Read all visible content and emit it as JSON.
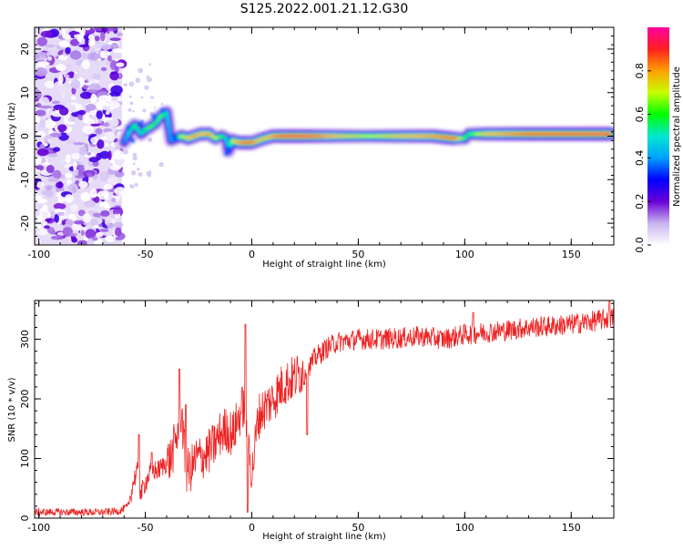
{
  "figure_title": "S125.2022.001.21.12.G30",
  "chart_data": [
    {
      "type": "heatmap",
      "title": "S125.2022.001.21.12.G30",
      "xlabel": "Height of straight line (km)",
      "ylabel": "Frequency (Hz)",
      "xlim": [
        -102,
        170
      ],
      "ylim": [
        -25,
        25
      ],
      "x_ticks": [
        "-100",
        "-50",
        "0",
        "50",
        "100",
        "150"
      ],
      "y_ticks": [
        "-20",
        "-10",
        "0",
        "10",
        "20"
      ],
      "colorbar": {
        "label": "Normalized spectral amplitude",
        "range": [
          0,
          1
        ],
        "ticks": [
          "0.0",
          "0.2",
          "0.4",
          "0.6",
          "0.8"
        ],
        "colors": [
          "#ffffff",
          "#c9b3f0",
          "#6a00d4",
          "#0000ff",
          "#00a0ff",
          "#00e8d0",
          "#00ff00",
          "#c8ff00",
          "#ffa000",
          "#ff2020",
          "#ff00a0"
        ]
      },
      "noise_region": {
        "x": [
          -102,
          -61
        ],
        "y": [
          -25,
          25
        ],
        "peak_amplitude": 0.25
      },
      "ridge": {
        "x": [
          -60,
          -57,
          -55,
          -52,
          -50,
          -48,
          -45,
          -43,
          -41,
          -40,
          -38,
          -36,
          -33,
          -30,
          -27,
          -24,
          -20,
          -17,
          -14,
          -12,
          -11,
          -10,
          -9,
          -6,
          -3,
          0,
          3,
          6,
          10,
          15,
          25,
          40,
          55,
          70,
          85,
          95,
          100,
          102,
          110,
          130,
          150,
          168
        ],
        "frequency": [
          -1.5,
          1.5,
          2.5,
          0.5,
          1.5,
          2,
          3,
          4.5,
          5,
          5.5,
          -1,
          -0.5,
          0,
          -0.5,
          0,
          0.5,
          0.5,
          -0.5,
          0,
          -0.5,
          -3.5,
          -2,
          -1,
          -1.5,
          -1.5,
          -1.5,
          -1,
          -0.5,
          0,
          0,
          0,
          0,
          0,
          0,
          0,
          -0.5,
          -0.5,
          0.5,
          0.5,
          0.5,
          0.5,
          0.5
        ],
        "amplitude": [
          0.4,
          0.55,
          0.6,
          0.5,
          0.6,
          0.65,
          0.6,
          0.65,
          0.6,
          0.5,
          0.4,
          0.55,
          0.7,
          0.8,
          0.85,
          0.8,
          0.85,
          0.7,
          0.6,
          0.5,
          0.4,
          0.6,
          0.75,
          0.85,
          0.9,
          0.9,
          0.8,
          0.8,
          0.85,
          0.95,
          0.95,
          0.8,
          0.7,
          0.8,
          0.85,
          0.9,
          0.6,
          0.6,
          0.8,
          0.9,
          0.92,
          0.95
        ]
      }
    },
    {
      "type": "line",
      "title": "",
      "xlabel": "Height of straight line (km)",
      "ylabel": "SNR (10 * v/v)",
      "xlim": [
        -102,
        170
      ],
      "ylim": [
        0,
        365
      ],
      "x_ticks": [
        "-100",
        "-50",
        "0",
        "50",
        "100",
        "150"
      ],
      "y_ticks": [
        "0",
        "100",
        "200",
        "300"
      ],
      "series_color": "#ee2222",
      "trend": {
        "x": [
          -102,
          -90,
          -80,
          -70,
          -62,
          -58,
          -56,
          -54,
          -52,
          -50,
          -47,
          -44,
          -41,
          -38,
          -35,
          -33,
          -31,
          -29,
          -26,
          -22,
          -18,
          -15,
          -12,
          -9,
          -6,
          -4,
          -2,
          0,
          3,
          6,
          10,
          15,
          20,
          23,
          25,
          27,
          30,
          35,
          40,
          50,
          60,
          70,
          80,
          90,
          100,
          110,
          120,
          130,
          140,
          150,
          160,
          168
        ],
        "y": [
          10,
          10,
          10,
          10,
          12,
          20,
          55,
          80,
          40,
          60,
          80,
          80,
          90,
          100,
          140,
          180,
          80,
          80,
          100,
          105,
          120,
          140,
          150,
          140,
          170,
          190,
          150,
          70,
          170,
          185,
          200,
          225,
          235,
          245,
          250,
          255,
          270,
          285,
          295,
          300,
          300,
          302,
          305,
          300,
          308,
          312,
          315,
          320,
          322,
          325,
          330,
          335
        ]
      },
      "noise_amplitude": 18,
      "spikes": [
        {
          "x": -53,
          "y": 140
        },
        {
          "x": -47,
          "y": 110
        },
        {
          "x": -34,
          "y": 250
        },
        {
          "x": -31,
          "y": 190
        },
        {
          "x": -3,
          "y": 325
        },
        {
          "x": -2,
          "y": 10
        },
        {
          "x": 26,
          "y": 140
        },
        {
          "x": 104,
          "y": 345
        },
        {
          "x": 168,
          "y": 365
        }
      ]
    }
  ]
}
